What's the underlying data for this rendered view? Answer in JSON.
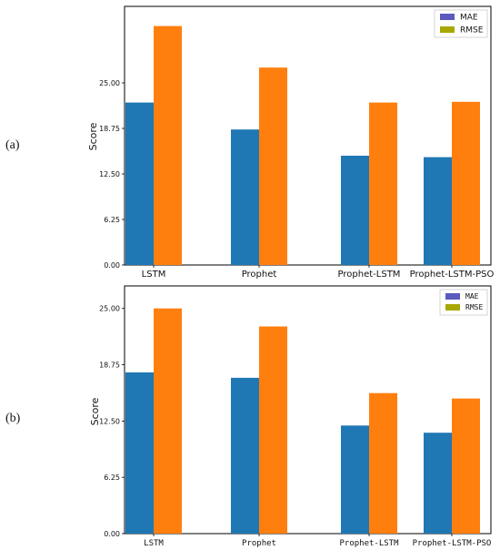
{
  "chart_data": [
    {
      "panel_label": "(a)",
      "type": "bar",
      "ylabel": "Score",
      "yticks": [
        "0.00",
        "6.25",
        "12.50",
        "18.75",
        "25.00"
      ],
      "ylim": [
        0,
        35.5
      ],
      "categories": [
        "LSTM",
        "Prophet",
        "Prophet-LSTM",
        "Prophet-LSTM-PSO"
      ],
      "series": [
        {
          "name": "MAE",
          "values": [
            22.3,
            18.6,
            15.0,
            14.8
          ]
        },
        {
          "name": "RMSE",
          "values": [
            32.8,
            27.1,
            22.3,
            22.4
          ]
        }
      ],
      "legend": {
        "position": "top-right",
        "entries": [
          "MAE",
          "RMSE"
        ]
      },
      "colors": {
        "MAE": "#1f77b4",
        "RMSE": "#ff7f0e",
        "legend_MAE": "#5b5bbf",
        "legend_RMSE": "#a8a800"
      }
    },
    {
      "panel_label": "(b)",
      "type": "bar",
      "ylabel": "Score",
      "yticks": [
        "0.00",
        "6.25",
        "12.50",
        "18.75",
        "25.00"
      ],
      "ylim": [
        0,
        27.5
      ],
      "categories": [
        "LSTM",
        "Prophet",
        "Prophet-LSTM",
        "Prophet-LSTM-PSO"
      ],
      "series": [
        {
          "name": "MAE",
          "values": [
            17.9,
            17.3,
            12.0,
            11.2
          ]
        },
        {
          "name": "RMSE",
          "values": [
            25.0,
            23.0,
            15.6,
            15.0
          ]
        }
      ],
      "legend": {
        "position": "top-right",
        "entries": [
          "MAE",
          "RMSE"
        ]
      },
      "colors": {
        "MAE": "#1f77b4",
        "RMSE": "#ff7f0e",
        "legend_MAE": "#5b5bbf",
        "legend_RMSE": "#a8a800"
      }
    }
  ]
}
